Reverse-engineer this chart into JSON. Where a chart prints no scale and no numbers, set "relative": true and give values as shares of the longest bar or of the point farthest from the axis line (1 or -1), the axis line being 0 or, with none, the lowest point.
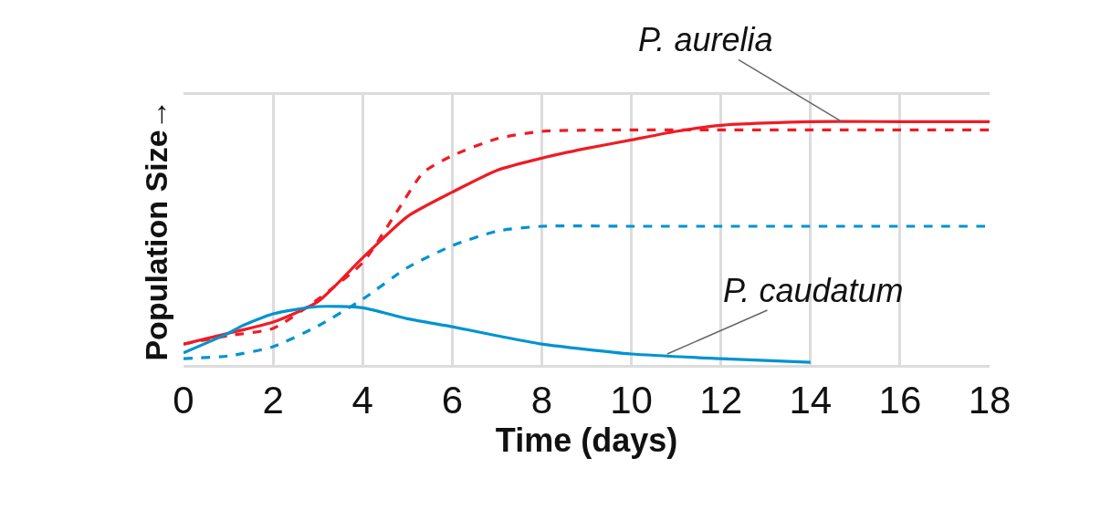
{
  "chart_data": {
    "type": "line",
    "relative": true,
    "xlabel": "Time (days)",
    "ylabel": "Population Size→",
    "xlim": [
      0,
      18
    ],
    "xticks": [
      0,
      2,
      4,
      6,
      8,
      10,
      12,
      14,
      16,
      18
    ],
    "grid": "x",
    "marker": "none",
    "series": [
      {
        "color": "#ee1c25",
        "line_style": "solid",
        "x": [
          0,
          1,
          2,
          3,
          4,
          5,
          6,
          7,
          8,
          9,
          10,
          11,
          12,
          14,
          16,
          18
        ],
        "values": [
          0.086,
          0.13,
          0.176,
          0.26,
          0.44,
          0.61,
          0.71,
          0.8,
          0.85,
          0.89,
          0.925,
          0.96,
          0.985,
          1.0,
          1.0,
          1.0
        ]
      },
      {
        "color": "#ee1c25",
        "line_style": "dashed",
        "x": [
          0,
          1,
          2,
          3,
          4,
          4.8,
          5.35,
          6,
          7,
          8,
          10,
          12,
          14,
          16,
          18
        ],
        "values": [
          0.086,
          0.12,
          0.15,
          0.27,
          0.42,
          0.64,
          0.79,
          0.86,
          0.93,
          0.96,
          0.966,
          0.966,
          0.966,
          0.966,
          0.966
        ]
      },
      {
        "color": "#0093d0",
        "line_style": "solid",
        "x": [
          0,
          1,
          1.3,
          2,
          3,
          4,
          5,
          6,
          7,
          8,
          10,
          12,
          14
        ],
        "values": [
          0.05,
          0.13,
          0.16,
          0.21,
          0.24,
          0.235,
          0.19,
          0.157,
          0.12,
          0.086,
          0.045,
          0.026,
          0.011
        ]
      },
      {
        "color": "#0093d0",
        "line_style": "dashed",
        "x": [
          0,
          1,
          2,
          3,
          4,
          5,
          6,
          7,
          8,
          10,
          12,
          14,
          16,
          18
        ],
        "values": [
          0.026,
          0.037,
          0.075,
          0.16,
          0.27,
          0.4,
          0.49,
          0.55,
          0.57,
          0.57,
          0.57,
          0.57,
          0.57,
          0.57
        ]
      }
    ],
    "annotations": [
      {
        "text": "P. aurelia",
        "x": 14.7,
        "y": 1.0
      },
      {
        "text": "P. caudatum",
        "x": 10.8,
        "y": 0.045
      }
    ]
  }
}
